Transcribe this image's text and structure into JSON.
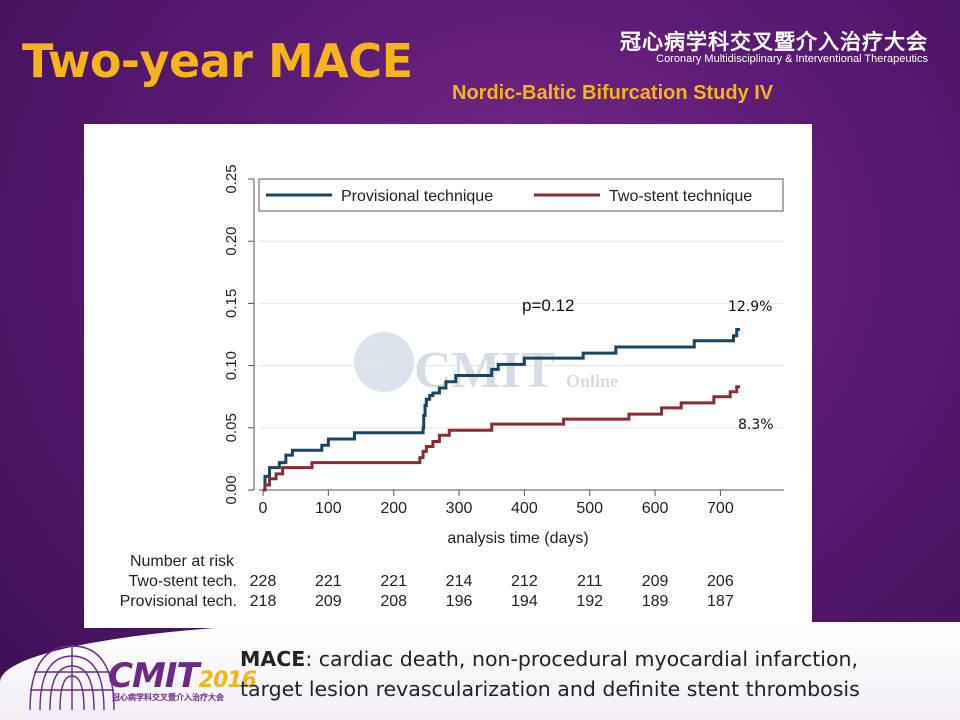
{
  "slide": {
    "title": "Two-year MACE",
    "subtitle": "Nordic-Baltic Bifurcation Study IV",
    "org_cn": "冠心病学科交叉暨介入治疗大会",
    "org_en": "Coronary Multidisciplinary & Interventional Therapeutics",
    "logo_text": "CMIT",
    "logo_year": "2016",
    "logo_sub": "冠心病学科交叉暨介入治疗大会",
    "footnote_term": "MACE",
    "footnote_line1": ": cardiac death, non-procedural myocardial infarction,",
    "footnote_line2": "target lesion revascularization and definite stent thrombosis",
    "watermark_main": "CMIT",
    "watermark_sub": "Online"
  },
  "colors": {
    "background": "#5a1a72",
    "title": "#f4b41a",
    "provisional": "#1b4463",
    "two_stent": "#8b2c34"
  },
  "chart_data": {
    "type": "line",
    "step": true,
    "xlabel": "analysis time (days)",
    "ylabel": "",
    "xlim": [
      0,
      730
    ],
    "ylim": [
      0,
      0.25
    ],
    "x_ticks": [
      "0",
      "100",
      "200",
      "300",
      "400",
      "500",
      "600",
      "700"
    ],
    "y_ticks": [
      "0.00",
      "0.05",
      "0.10",
      "0.15",
      "0.20",
      "0.25"
    ],
    "legend_position": "top",
    "grid": "horizontal",
    "annotation_p": "p=0.12",
    "end_label_provisional": "12.9%",
    "end_label_two_stent": "8.3%",
    "series": [
      {
        "name": "Provisional technique",
        "x": [
          0,
          3,
          10,
          25,
          35,
          45,
          90,
          100,
          140,
          245,
          246,
          248,
          250,
          255,
          260,
          270,
          280,
          295,
          350,
          360,
          390,
          400,
          430,
          460,
          490,
          540,
          570,
          600,
          630,
          640,
          660,
          690,
          720,
          725,
          730
        ],
        "y": [
          0.0,
          0.011,
          0.018,
          0.022,
          0.028,
          0.032,
          0.036,
          0.041,
          0.046,
          0.05,
          0.06,
          0.068,
          0.073,
          0.076,
          0.078,
          0.082,
          0.087,
          0.092,
          0.097,
          0.101,
          0.101,
          0.106,
          0.106,
          0.106,
          0.11,
          0.115,
          0.115,
          0.115,
          0.115,
          0.115,
          0.12,
          0.12,
          0.124,
          0.129,
          0.129
        ]
      },
      {
        "name": "Two-stent technique",
        "x": [
          0,
          3,
          10,
          20,
          30,
          75,
          160,
          235,
          240,
          245,
          250,
          260,
          270,
          285,
          305,
          350,
          460,
          520,
          560,
          590,
          610,
          640,
          660,
          690,
          715,
          725,
          730
        ],
        "y": [
          0.0,
          0.004,
          0.009,
          0.013,
          0.018,
          0.022,
          0.022,
          0.022,
          0.026,
          0.031,
          0.035,
          0.039,
          0.044,
          0.048,
          0.048,
          0.053,
          0.057,
          0.057,
          0.061,
          0.061,
          0.066,
          0.07,
          0.07,
          0.075,
          0.079,
          0.083,
          0.083
        ]
      }
    ],
    "risk_table": {
      "heading": "Number at risk",
      "rows": [
        {
          "label": "Two-stent tech.",
          "values": [
            "228",
            "221",
            "221",
            "214",
            "212",
            "211",
            "209",
            "206"
          ]
        },
        {
          "label": "Provisional tech.",
          "values": [
            "218",
            "209",
            "208",
            "196",
            "194",
            "192",
            "189",
            "187"
          ]
        }
      ]
    }
  }
}
